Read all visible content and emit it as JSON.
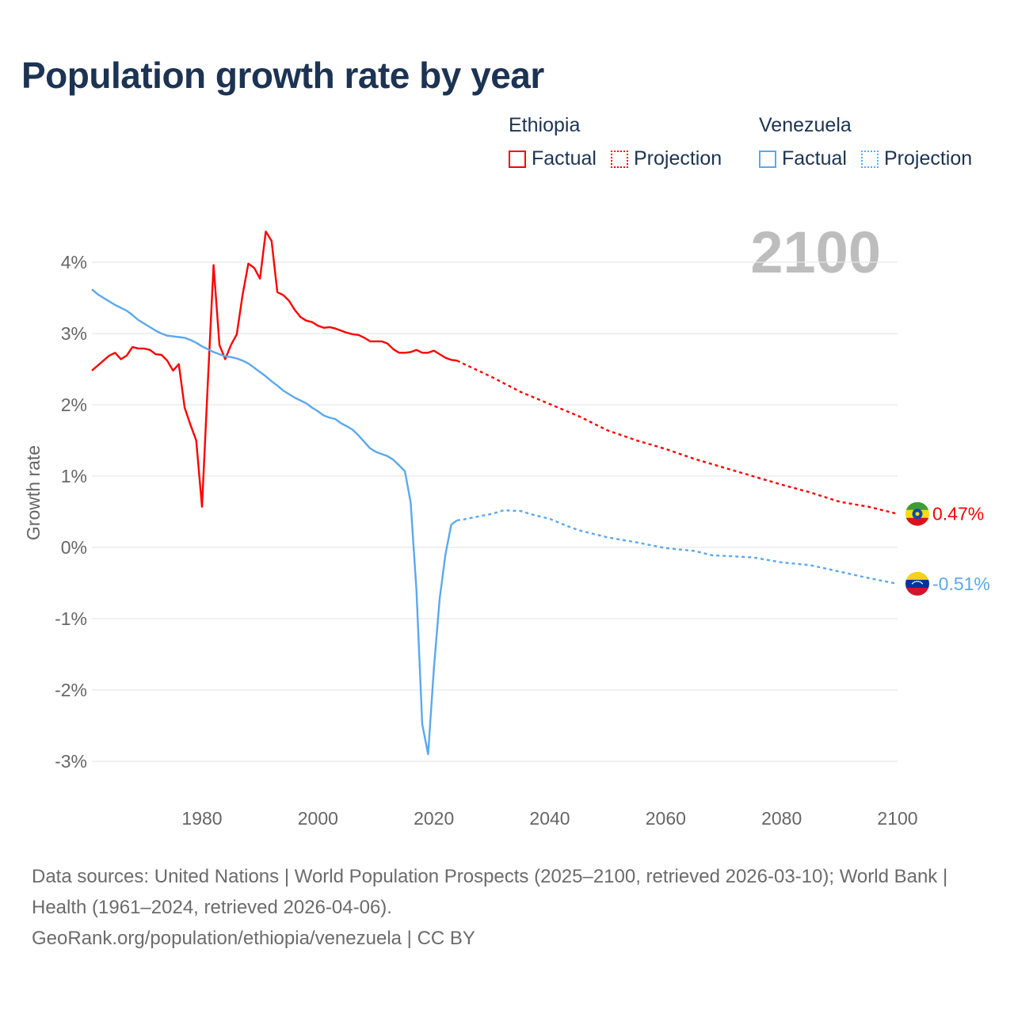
{
  "title": "Population growth rate by year",
  "year_display": "2100",
  "legend": [
    {
      "country": "Ethiopia",
      "color": "#ff0000",
      "factual": "Factual",
      "projection": "Projection"
    },
    {
      "country": "Venezuela",
      "color": "#5ba8ee",
      "factual": "Factual",
      "projection": "Projection"
    }
  ],
  "chart_data": {
    "type": "line",
    "title": "Population growth rate by year",
    "ylabel": "Growth rate",
    "xlabel": "",
    "xlim": [
      1961,
      2100
    ],
    "ylim": [
      -3.4,
      4.6
    ],
    "x_ticks": [
      1980,
      2000,
      2020,
      2040,
      2060,
      2080,
      2100
    ],
    "x_tick_labels": [
      "1980",
      "2000",
      "2020",
      "2040",
      "2060",
      "2080",
      "2100"
    ],
    "y_ticks": [
      4,
      3,
      2,
      1,
      0,
      -1,
      -2,
      -3
    ],
    "y_tick_labels": [
      "4%",
      "3%",
      "2%",
      "1%",
      "0%",
      "-1%",
      "-2%",
      "-3%"
    ],
    "grid": true,
    "series": [
      {
        "name": "Ethiopia",
        "color": "#ff0000",
        "end_label": "0.47%",
        "factual": {
          "x": [
            1961,
            1962,
            1963,
            1964,
            1965,
            1966,
            1967,
            1968,
            1969,
            1970,
            1971,
            1972,
            1973,
            1974,
            1975,
            1976,
            1977,
            1978,
            1979,
            1980,
            1981,
            1982,
            1983,
            1984,
            1985,
            1986,
            1987,
            1988,
            1989,
            1990,
            1991,
            1992,
            1993,
            1994,
            1995,
            1996,
            1997,
            1998,
            1999,
            2000,
            2001,
            2002,
            2003,
            2004,
            2005,
            2006,
            2007,
            2008,
            2009,
            2010,
            2011,
            2012,
            2013,
            2014,
            2015,
            2016,
            2017,
            2018,
            2019,
            2020,
            2021,
            2022,
            2023,
            2024
          ],
          "y": [
            2.48,
            2.55,
            2.62,
            2.69,
            2.73,
            2.64,
            2.69,
            2.81,
            2.79,
            2.79,
            2.77,
            2.71,
            2.7,
            2.62,
            2.48,
            2.57,
            1.96,
            1.72,
            1.5,
            0.57,
            2.3,
            3.96,
            2.84,
            2.64,
            2.84,
            2.99,
            3.54,
            3.98,
            3.92,
            3.77,
            4.43,
            4.3,
            3.58,
            3.54,
            3.46,
            3.33,
            3.23,
            3.18,
            3.16,
            3.11,
            3.08,
            3.09,
            3.07,
            3.04,
            3.01,
            2.99,
            2.98,
            2.94,
            2.89,
            2.89,
            2.89,
            2.86,
            2.78,
            2.73,
            2.73,
            2.74,
            2.77,
            2.73,
            2.73,
            2.76,
            2.71,
            2.66,
            2.63,
            2.62
          ]
        },
        "projection": {
          "x": [
            2024,
            2025,
            2030,
            2035,
            2040,
            2045,
            2050,
            2055,
            2060,
            2065,
            2070,
            2075,
            2080,
            2085,
            2090,
            2095,
            2100
          ],
          "y": [
            2.62,
            2.58,
            2.39,
            2.18,
            2.01,
            1.84,
            1.64,
            1.5,
            1.38,
            1.24,
            1.12,
            1.0,
            0.88,
            0.77,
            0.64,
            0.57,
            0.47
          ]
        }
      },
      {
        "name": "Venezuela",
        "color": "#5ba8ee",
        "end_label": "-0.51%",
        "factual": {
          "x": [
            1961,
            1962,
            1963,
            1964,
            1965,
            1966,
            1967,
            1968,
            1969,
            1970,
            1971,
            1972,
            1973,
            1974,
            1975,
            1976,
            1977,
            1978,
            1979,
            1980,
            1981,
            1982,
            1983,
            1984,
            1985,
            1986,
            1987,
            1988,
            1989,
            1990,
            1991,
            1992,
            1993,
            1994,
            1995,
            1996,
            1997,
            1998,
            1999,
            2000,
            2001,
            2002,
            2003,
            2004,
            2005,
            2006,
            2007,
            2008,
            2009,
            2010,
            2011,
            2012,
            2013,
            2014,
            2015,
            2016,
            2017,
            2018,
            2019,
            2020,
            2021,
            2022,
            2023,
            2024
          ],
          "y": [
            3.62,
            3.55,
            3.5,
            3.45,
            3.4,
            3.36,
            3.32,
            3.26,
            3.19,
            3.14,
            3.09,
            3.04,
            3.0,
            2.97,
            2.96,
            2.95,
            2.94,
            2.91,
            2.87,
            2.82,
            2.78,
            2.74,
            2.71,
            2.68,
            2.67,
            2.65,
            2.62,
            2.58,
            2.52,
            2.46,
            2.4,
            2.33,
            2.27,
            2.2,
            2.15,
            2.1,
            2.06,
            2.02,
            1.96,
            1.91,
            1.85,
            1.82,
            1.8,
            1.74,
            1.7,
            1.65,
            1.57,
            1.48,
            1.39,
            1.34,
            1.31,
            1.28,
            1.23,
            1.15,
            1.07,
            0.63,
            -0.6,
            -2.48,
            -2.9,
            -1.7,
            -0.72,
            -0.1,
            0.32,
            0.38
          ]
        },
        "projection": {
          "x": [
            2024,
            2025,
            2028,
            2030,
            2032,
            2035,
            2037,
            2040,
            2043,
            2045,
            2048,
            2050,
            2055,
            2060,
            2065,
            2068,
            2075,
            2080,
            2085,
            2090,
            2095,
            2100
          ],
          "y": [
            0.38,
            0.39,
            0.44,
            0.47,
            0.52,
            0.51,
            0.46,
            0.4,
            0.3,
            0.24,
            0.18,
            0.14,
            0.07,
            -0.01,
            -0.05,
            -0.11,
            -0.14,
            -0.21,
            -0.25,
            -0.34,
            -0.43,
            -0.51
          ]
        }
      }
    ]
  },
  "footer": {
    "sources": "Data sources: United Nations | World Population Prospects (2025–2100, retrieved 2026-03-10); World Bank | Health (1961–2024, retrieved 2026-04-06).",
    "credit": "GeoRank.org/population/ethiopia/venezuela | CC BY"
  }
}
